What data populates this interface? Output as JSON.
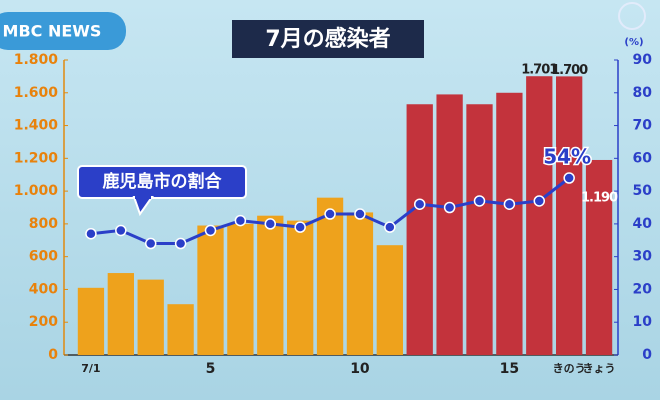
{
  "chart_data": {
    "type": "bar",
    "title": "7月の感染者",
    "logo": "MBC NEWS",
    "annotation": "鹿児島市の割合",
    "y2_unit": "(%)",
    "categories": [
      "7/1",
      null,
      null,
      null,
      "5",
      null,
      null,
      null,
      null,
      "10",
      null,
      null,
      null,
      null,
      "15",
      null,
      "きのう",
      "きょう"
    ],
    "series": [
      {
        "type": "bar",
        "colors": [
          "#eea21c",
          "#eea21c",
          "#eea21c",
          "#eea21c",
          "#eea21c",
          "#eea21c",
          "#eea21c",
          "#eea21c",
          "#eea21c",
          "#eea21c",
          "#eea21c",
          "#c3333c",
          "#c3333c",
          "#c3333c",
          "#c3333c",
          "#c3333c",
          "#c3333c",
          "#c3333c"
        ],
        "values": [
          410,
          500,
          460,
          310,
          790,
          800,
          850,
          820,
          960,
          870,
          670,
          1530,
          1590,
          1530,
          1600,
          1701,
          1700,
          1190
        ],
        "value_labels": [
          null,
          null,
          null,
          null,
          null,
          null,
          null,
          null,
          null,
          null,
          null,
          null,
          null,
          null,
          null,
          "1.701",
          "1.700",
          "1.190"
        ]
      },
      {
        "type": "line",
        "axis": "y2",
        "color": "#2b3fc8",
        "values": [
          37,
          38,
          34,
          34,
          38,
          41,
          40,
          39,
          43,
          43,
          39,
          46,
          45,
          47,
          46,
          47,
          54,
          null
        ],
        "value_labels": [
          null,
          null,
          null,
          null,
          null,
          null,
          null,
          null,
          null,
          null,
          null,
          null,
          null,
          null,
          null,
          null,
          "54%",
          null
        ]
      }
    ],
    "ylim": [
      0,
      1800
    ],
    "yticks": [
      0,
      200,
      400,
      600,
      800,
      {
        "value": 1000,
        "label": "1.000"
      },
      {
        "value": 1200,
        "label": "1.200"
      },
      {
        "value": 1400,
        "label": "1.400"
      },
      {
        "value": 1600,
        "label": "1.600"
      },
      {
        "value": 1800,
        "label": "1.800"
      }
    ],
    "y2lim": [
      0,
      90
    ],
    "y2ticks": [
      0,
      10,
      20,
      30,
      40,
      50,
      60,
      70,
      80,
      90
    ]
  }
}
